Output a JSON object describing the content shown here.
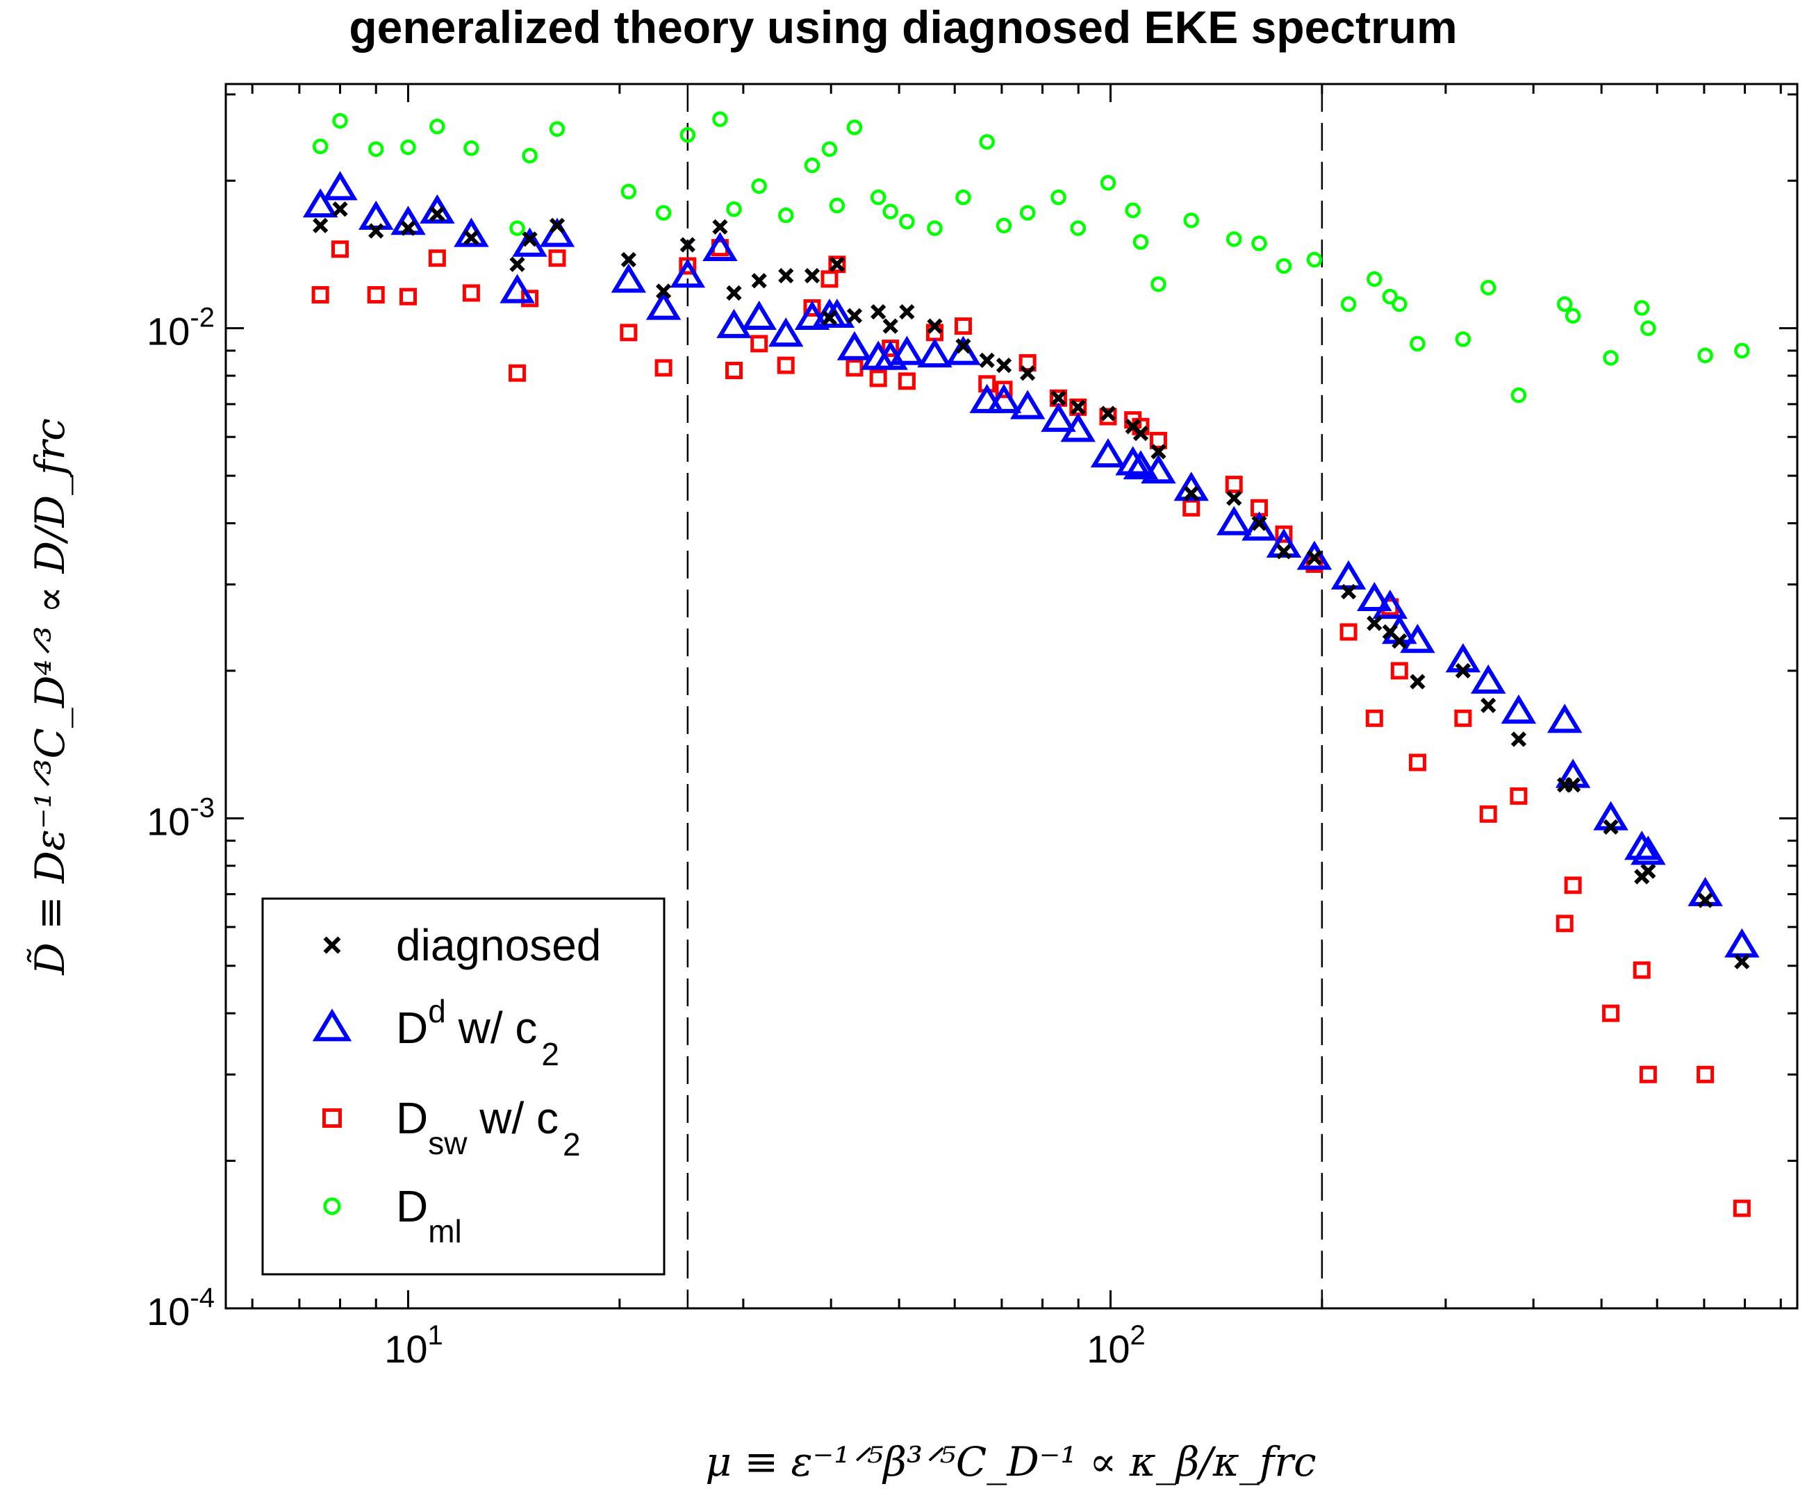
{
  "chart_data": {
    "type": "scatter",
    "title": "generalized theory using diagnosed EKE spectrum",
    "xlabel": "μ ≡ ε⁻¹ᐟ⁵β³ᐟ⁵C_D⁻¹ ∝ κ_β/κ_frc",
    "ylabel": "D̃ ≡ Dε⁻¹ᐟ³C_D⁴ᐟ³ ∝ D/D_frc",
    "xscale": "log",
    "yscale": "log",
    "xlim": [
      5.5,
      950
    ],
    "ylim": [
      0.0001,
      0.0315
    ],
    "x_ticks": [
      {
        "value": 10,
        "base": "10",
        "exp": "1"
      },
      {
        "value": 100,
        "base": "10",
        "exp": "2"
      }
    ],
    "y_ticks": [
      {
        "value": 0.0001,
        "base": "10",
        "exp": "-4"
      },
      {
        "value": 0.001,
        "base": "10",
        "exp": "-3"
      },
      {
        "value": 0.01,
        "base": "10",
        "exp": "-2"
      }
    ],
    "vlines": [
      25,
      200
    ],
    "legend": {
      "position": "bottom-left",
      "entries": [
        {
          "series": 0,
          "base": "diagnosed",
          "sub": "",
          "sup": "",
          "rest": ""
        },
        {
          "series": 1,
          "base": "D",
          "sub": "",
          "sup": "d",
          "rest": " w/ c",
          "rest_sub": "2"
        },
        {
          "series": 2,
          "base": "D",
          "sub": "sw",
          "sup": "",
          "rest": " w/ c",
          "rest_sub": "2"
        },
        {
          "series": 3,
          "base": "D",
          "sub": "ml",
          "sup": "",
          "rest": "",
          "rest_sub": ""
        }
      ]
    },
    "series": [
      {
        "name": "diagnosed",
        "marker": "x",
        "color": "#000000",
        "points": [
          [
            7.5,
            0.0162
          ],
          [
            8.0,
            0.0175
          ],
          [
            9.0,
            0.0158
          ],
          [
            10.0,
            0.016
          ],
          [
            11.0,
            0.0171
          ],
          [
            12.3,
            0.0153
          ],
          [
            14.3,
            0.0135
          ],
          [
            14.9,
            0.0152
          ],
          [
            16.3,
            0.0162
          ],
          [
            20.6,
            0.0138
          ],
          [
            23.1,
            0.0119
          ],
          [
            25.0,
            0.0148
          ],
          [
            27.8,
            0.0161
          ],
          [
            29.1,
            0.0118
          ],
          [
            31.6,
            0.0125
          ],
          [
            34.5,
            0.0128
          ],
          [
            37.6,
            0.0128
          ],
          [
            39.8,
            0.0105
          ],
          [
            40.8,
            0.0135
          ],
          [
            43.2,
            0.0106
          ],
          [
            46.7,
            0.0108
          ],
          [
            48.6,
            0.0101
          ],
          [
            51.3,
            0.0108
          ],
          [
            56.2,
            0.0101
          ],
          [
            61.7,
            0.0092
          ],
          [
            66.7,
            0.0086
          ],
          [
            70.5,
            0.0084
          ],
          [
            76.2,
            0.0081
          ],
          [
            84.3,
            0.0072
          ],
          [
            89.9,
            0.0069
          ],
          [
            99.2,
            0.0067
          ],
          [
            107.6,
            0.0063
          ],
          [
            110.4,
            0.0061
          ],
          [
            117.0,
            0.0056
          ],
          [
            130.3,
            0.0046
          ],
          [
            149.9,
            0.0045
          ],
          [
            162.8,
            0.004
          ],
          [
            176.5,
            0.0035
          ],
          [
            195.1,
            0.0034
          ],
          [
            218.2,
            0.0029
          ],
          [
            237.5,
            0.0025
          ],
          [
            250.0,
            0.0024
          ],
          [
            257.8,
            0.0023
          ],
          [
            273.6,
            0.0019
          ],
          [
            317.6,
            0.002
          ],
          [
            345.0,
            0.0017
          ],
          [
            381.1,
            0.00145
          ],
          [
            443.2,
            0.00117
          ],
          [
            455.4,
            0.00117
          ],
          [
            515.5,
            0.00096
          ],
          [
            570.7,
            0.00076
          ],
          [
            582.7,
            0.00078
          ],
          [
            702.7,
            0.00068
          ],
          [
            792.4,
            0.00051
          ]
        ]
      },
      {
        "name": "D^d w/ c2",
        "marker": "triangle",
        "color": "#0000ff",
        "points": [
          [
            7.5,
            0.0178
          ],
          [
            8.0,
            0.0193
          ],
          [
            9.0,
            0.0168
          ],
          [
            10.0,
            0.0164
          ],
          [
            11.0,
            0.0173
          ],
          [
            12.3,
            0.0155
          ],
          [
            14.3,
            0.0119
          ],
          [
            14.9,
            0.0148
          ],
          [
            16.3,
            0.0155
          ],
          [
            20.6,
            0.0125
          ],
          [
            23.1,
            0.011
          ],
          [
            25.0,
            0.0128
          ],
          [
            27.8,
            0.0145
          ],
          [
            29.1,
            0.0101
          ],
          [
            31.6,
            0.0105
          ],
          [
            34.5,
            0.0097
          ],
          [
            37.6,
            0.0105
          ],
          [
            39.8,
            0.0106
          ],
          [
            40.8,
            0.0106
          ],
          [
            43.2,
            0.0091
          ],
          [
            46.7,
            0.0087
          ],
          [
            48.6,
            0.0087
          ],
          [
            51.3,
            0.0089
          ],
          [
            56.2,
            0.0088
          ],
          [
            61.7,
            0.0089
          ],
          [
            66.7,
            0.0071
          ],
          [
            70.5,
            0.0071
          ],
          [
            76.2,
            0.0069
          ],
          [
            84.3,
            0.0065
          ],
          [
            89.9,
            0.0062
          ],
          [
            99.2,
            0.0055
          ],
          [
            107.6,
            0.0053
          ],
          [
            110.4,
            0.0052
          ],
          [
            117.0,
            0.0051
          ],
          [
            130.3,
            0.0047
          ],
          [
            149.9,
            0.004
          ],
          [
            162.8,
            0.0039
          ],
          [
            176.5,
            0.0036
          ],
          [
            195.1,
            0.0034
          ],
          [
            218.2,
            0.0031
          ],
          [
            237.5,
            0.0028
          ],
          [
            250.0,
            0.0027
          ],
          [
            257.8,
            0.0024
          ],
          [
            273.6,
            0.0023
          ],
          [
            317.6,
            0.0021
          ],
          [
            345.0,
            0.0019
          ],
          [
            381.1,
            0.00165
          ],
          [
            443.2,
            0.00158
          ],
          [
            455.4,
            0.00122
          ],
          [
            515.5,
            0.001
          ],
          [
            570.7,
            0.00087
          ],
          [
            582.7,
            0.00085
          ],
          [
            702.7,
            0.0007
          ],
          [
            792.4,
            0.00055
          ]
        ]
      },
      {
        "name": "D_sw w/ c2",
        "marker": "square",
        "color": "#ff0000",
        "points": [
          [
            7.5,
            0.0117
          ],
          [
            8.0,
            0.0145
          ],
          [
            9.0,
            0.0117
          ],
          [
            10.0,
            0.0116
          ],
          [
            11.0,
            0.0139
          ],
          [
            12.3,
            0.0118
          ],
          [
            14.3,
            0.0081
          ],
          [
            14.9,
            0.0115
          ],
          [
            16.3,
            0.0139
          ],
          [
            20.6,
            0.0098
          ],
          [
            23.1,
            0.0083
          ],
          [
            25.0,
            0.0134
          ],
          [
            27.8,
            0.0146
          ],
          [
            29.1,
            0.0082
          ],
          [
            31.6,
            0.0093
          ],
          [
            34.5,
            0.0084
          ],
          [
            37.6,
            0.011
          ],
          [
            39.8,
            0.0126
          ],
          [
            40.8,
            0.0135
          ],
          [
            43.2,
            0.0083
          ],
          [
            46.7,
            0.0079
          ],
          [
            48.6,
            0.0091
          ],
          [
            51.3,
            0.0078
          ],
          [
            56.2,
            0.0098
          ],
          [
            61.7,
            0.0101
          ],
          [
            66.7,
            0.0077
          ],
          [
            70.5,
            0.0075
          ],
          [
            76.2,
            0.0085
          ],
          [
            84.3,
            0.0072
          ],
          [
            89.9,
            0.0069
          ],
          [
            99.2,
            0.0066
          ],
          [
            107.6,
            0.0065
          ],
          [
            110.4,
            0.0063
          ],
          [
            117.0,
            0.0059
          ],
          [
            130.3,
            0.0043
          ],
          [
            149.9,
            0.0048
          ],
          [
            162.8,
            0.0043
          ],
          [
            176.5,
            0.0038
          ],
          [
            195.1,
            0.0033
          ],
          [
            218.2,
            0.0024
          ],
          [
            237.5,
            0.0016
          ],
          [
            250.0,
            0.0027
          ],
          [
            257.8,
            0.002
          ],
          [
            273.6,
            0.0013
          ],
          [
            317.6,
            0.0016
          ],
          [
            345.0,
            0.00102
          ],
          [
            381.1,
            0.00111
          ],
          [
            443.2,
            0.00061
          ],
          [
            455.4,
            0.00073
          ],
          [
            515.5,
            0.0004
          ],
          [
            570.7,
            0.00049
          ],
          [
            582.7,
            0.0003
          ],
          [
            702.7,
            0.0003
          ],
          [
            792.4,
            0.00016
          ]
        ]
      },
      {
        "name": "D_ml",
        "marker": "circle",
        "color": "#00ff00",
        "points": [
          [
            7.5,
            0.0235
          ],
          [
            8.0,
            0.0265
          ],
          [
            9.0,
            0.0232
          ],
          [
            10.0,
            0.0234
          ],
          [
            11.0,
            0.0258
          ],
          [
            12.3,
            0.0233
          ],
          [
            14.3,
            0.016
          ],
          [
            14.9,
            0.0225
          ],
          [
            16.3,
            0.0255
          ],
          [
            20.6,
            0.019
          ],
          [
            23.1,
            0.0172
          ],
          [
            25.0,
            0.0248
          ],
          [
            27.8,
            0.0267
          ],
          [
            29.1,
            0.0175
          ],
          [
            31.6,
            0.0195
          ],
          [
            34.5,
            0.017
          ],
          [
            37.6,
            0.0215
          ],
          [
            39.8,
            0.0232
          ],
          [
            40.8,
            0.0178
          ],
          [
            43.2,
            0.0257
          ],
          [
            46.7,
            0.0185
          ],
          [
            48.6,
            0.0173
          ],
          [
            51.3,
            0.0165
          ],
          [
            56.2,
            0.016
          ],
          [
            61.7,
            0.0185
          ],
          [
            66.7,
            0.024
          ],
          [
            70.5,
            0.0162
          ],
          [
            76.2,
            0.0172
          ],
          [
            84.3,
            0.0185
          ],
          [
            89.9,
            0.016
          ],
          [
            99.2,
            0.0198
          ],
          [
            107.6,
            0.0174
          ],
          [
            110.4,
            0.015
          ],
          [
            117.0,
            0.0123
          ],
          [
            130.3,
            0.0166
          ],
          [
            149.9,
            0.0152
          ],
          [
            162.8,
            0.0149
          ],
          [
            176.5,
            0.0134
          ],
          [
            195.1,
            0.0138
          ],
          [
            218.2,
            0.0112
          ],
          [
            237.5,
            0.0126
          ],
          [
            250.0,
            0.0116
          ],
          [
            257.8,
            0.0112
          ],
          [
            273.6,
            0.0093
          ],
          [
            317.6,
            0.0095
          ],
          [
            345.0,
            0.0121
          ],
          [
            381.1,
            0.0073
          ],
          [
            443.2,
            0.0112
          ],
          [
            455.4,
            0.0106
          ],
          [
            515.5,
            0.0087
          ],
          [
            570.7,
            0.011
          ],
          [
            582.7,
            0.01
          ],
          [
            702.7,
            0.0088
          ],
          [
            792.4,
            0.009
          ]
        ]
      }
    ]
  }
}
